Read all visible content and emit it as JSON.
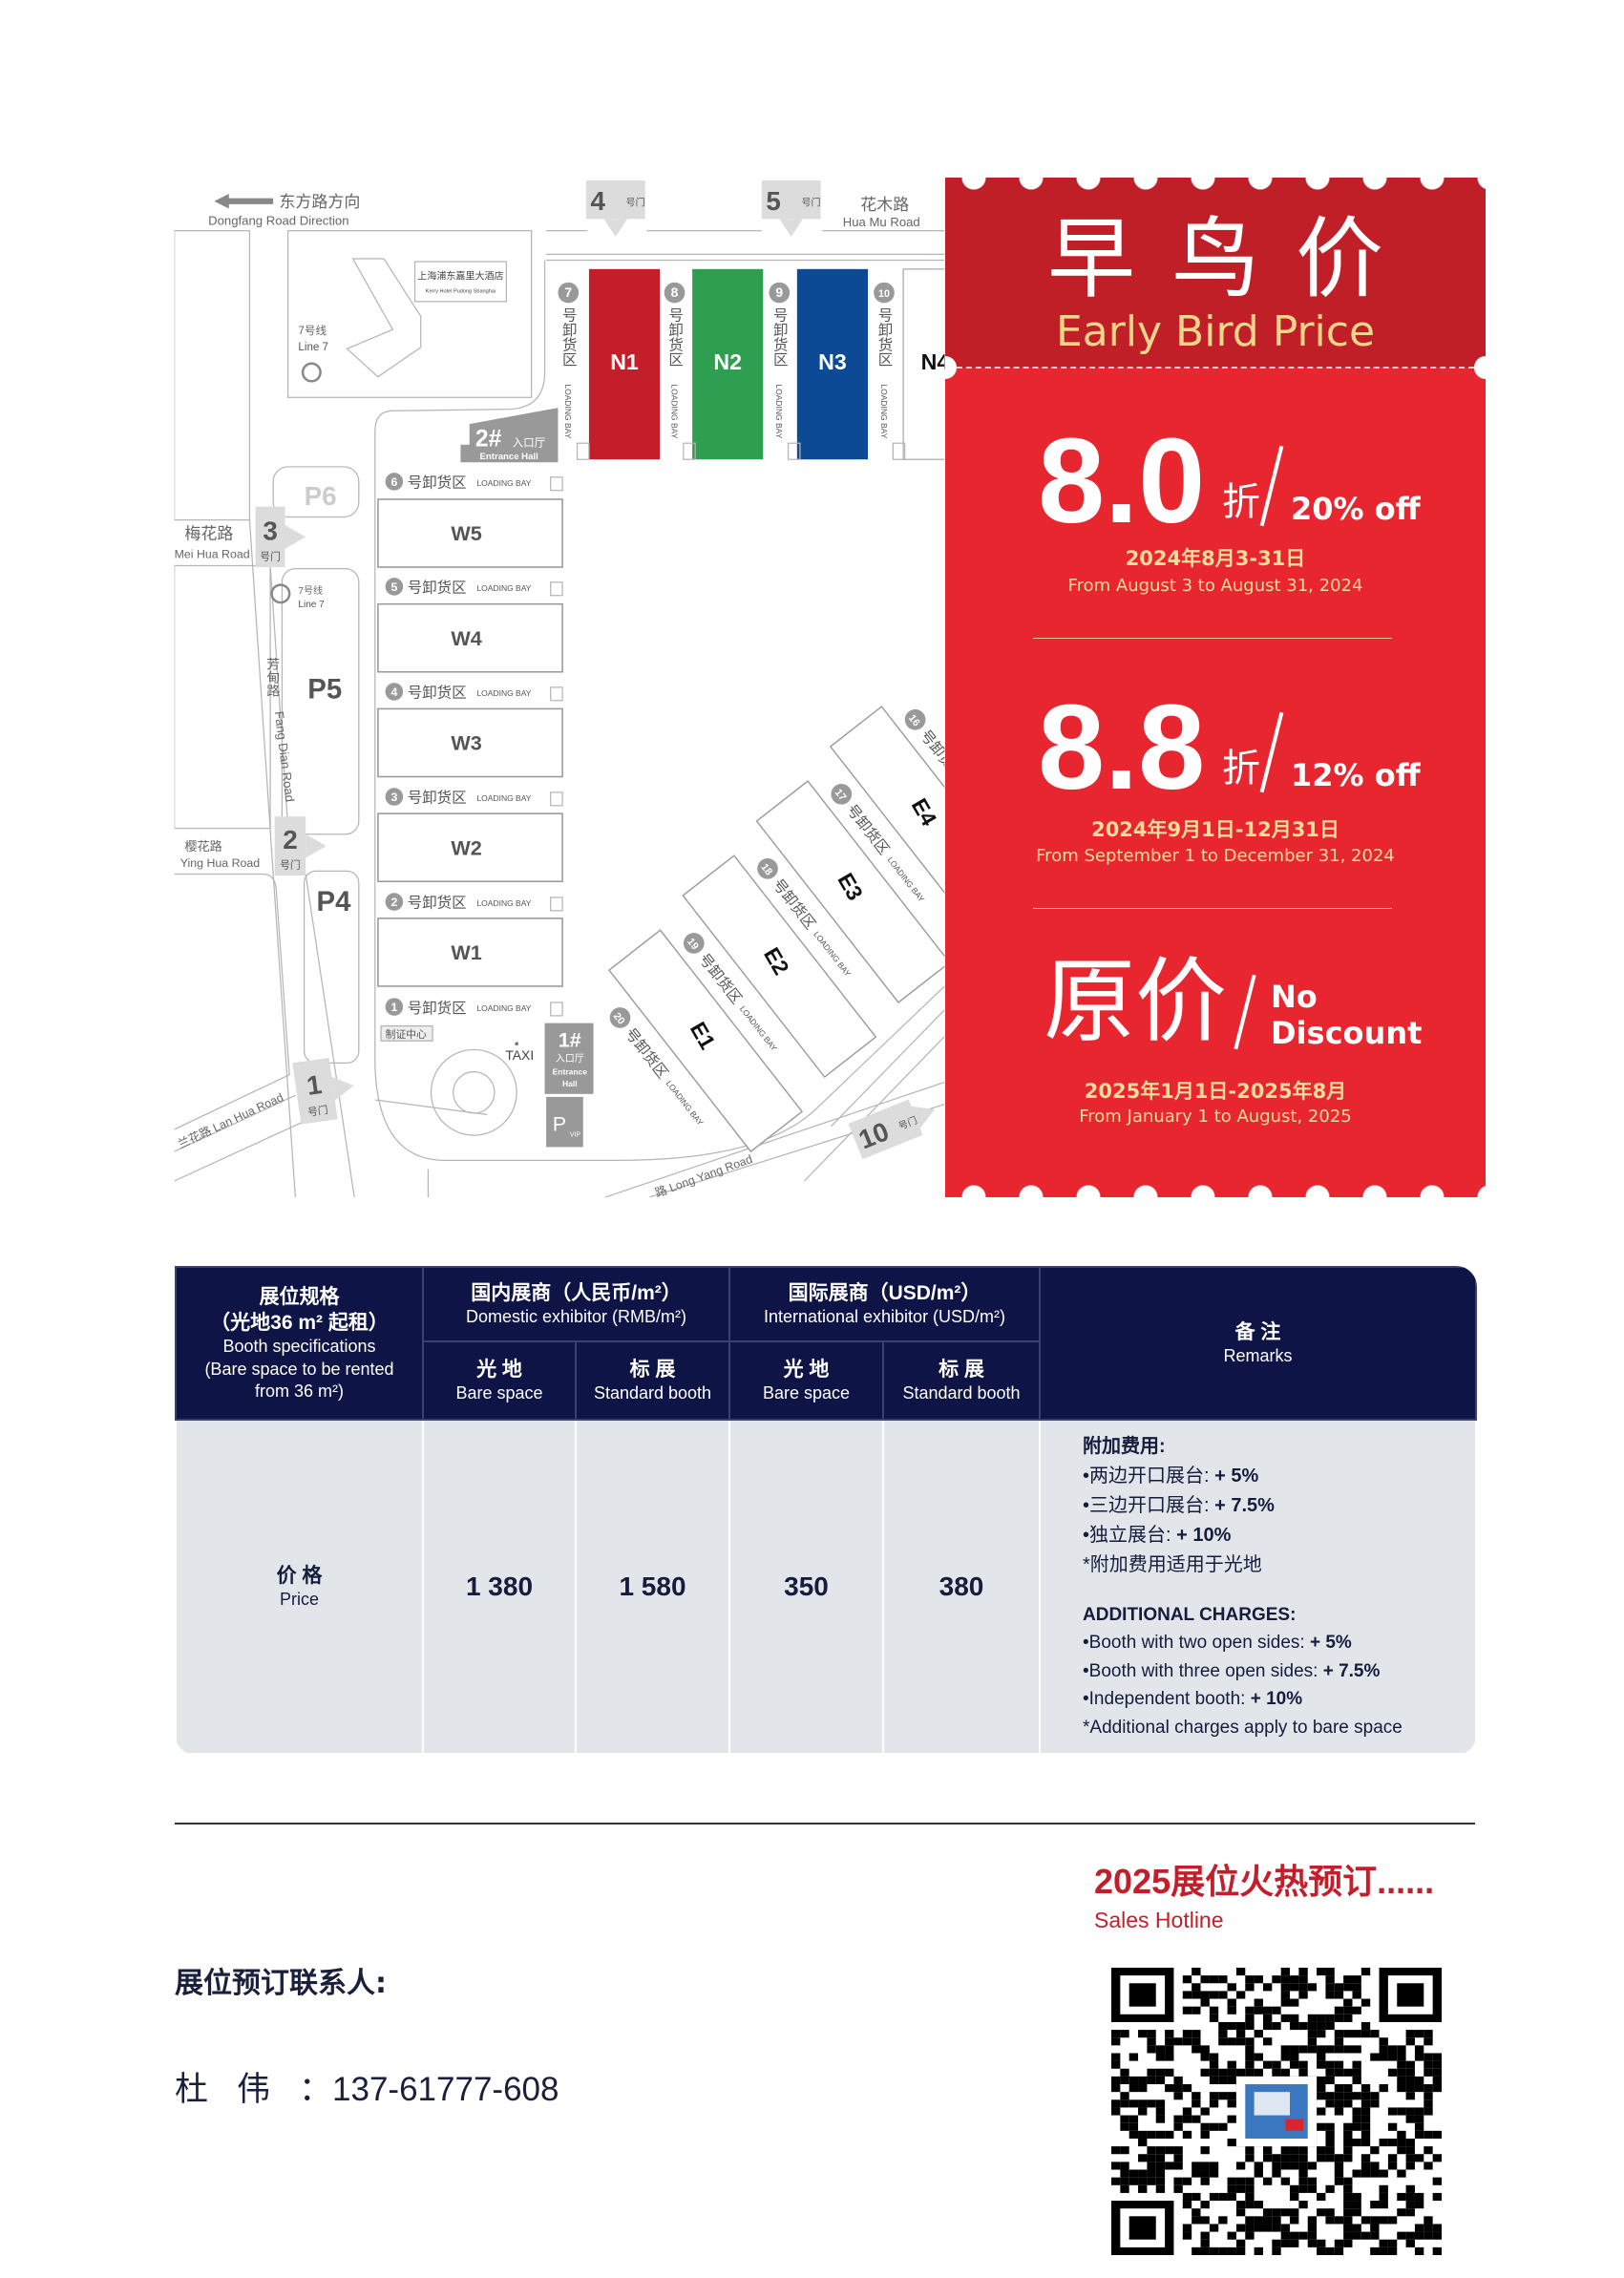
{
  "map": {
    "direction": {
      "cn": "东方路方向",
      "en": "Dongfang Road Direction"
    },
    "gate_suffix": "号门",
    "gates": {
      "g1": "1",
      "g2": "2",
      "g3": "3",
      "g4": "4",
      "g5": "5",
      "g10": "10"
    },
    "roads": {
      "huamu_cn": "花木路",
      "huamu_en": "Hua Mu Road",
      "meihua_cn": "梅花路",
      "meihua_en": "Mei Hua Road",
      "yinghua_cn": "樱花路",
      "yinghua_en": "Ying Hua Road",
      "fangdian_cn": "芳甸路",
      "fangdian_en": "Fang Dian Road",
      "lanhua": "兰花路 Lan Hua Road",
      "longyang": "路  Long Yang Road"
    },
    "hotel": {
      "cn": "上海浦东嘉里大酒店",
      "en": "Kerry Hotel Pudong Shanghai"
    },
    "metro": {
      "cn": "7号线",
      "en": "Line 7"
    },
    "parking": {
      "p6": "P6",
      "p5": "P5",
      "p4": "P4",
      "vip": "P",
      "vip_sub": "VIP"
    },
    "halls_north": [
      {
        "name": "N1",
        "color": "#c41e2a"
      },
      {
        "name": "N2",
        "color": "#2e9e50"
      },
      {
        "name": "N3",
        "color": "#0d4a95"
      },
      {
        "name": "N4",
        "color": "#ffffff"
      }
    ],
    "halls_west": [
      "W5",
      "W4",
      "W3",
      "W2",
      "W1"
    ],
    "halls_east": [
      "E1",
      "E2",
      "E3",
      "E4"
    ],
    "bays_north": [
      "7",
      "8",
      "9",
      "10"
    ],
    "bays_west": [
      "6",
      "5",
      "4",
      "3",
      "2",
      "1"
    ],
    "bays_east": [
      "20",
      "19",
      "18",
      "17",
      "16"
    ],
    "loading_bay_cn": "号卸货区",
    "loading_bay_en": "LOADING BAY",
    "entrance_2": {
      "num": "2#",
      "cn": "入口厅",
      "en": "Entrance Hall"
    },
    "entrance_1": {
      "num": "1#",
      "cn": "入口厅",
      "en1": "Entrance",
      "en2": "Hall"
    },
    "cert_center": "制证中心",
    "taxi": "TAXI"
  },
  "promo": {
    "title_cn": "早鸟价",
    "title_en": "Early Bird Price",
    "colors": {
      "header": "#c11f27",
      "body": "#e8262f",
      "date_text": "#f7dc9c"
    },
    "tiers": [
      {
        "discount": "8.0",
        "unit": "折",
        "off": "20% off",
        "date_cn": "2024年8月3-31日",
        "date_en": "From August 3 to August 31, 2024"
      },
      {
        "discount": "8.8",
        "unit": "折",
        "off": "12% off",
        "date_cn": "2024年9月1日-12月31日",
        "date_en": "From September 1 to December 31, 2024"
      },
      {
        "discount": "原价",
        "off_line1": "No",
        "off_line2": "Discount",
        "date_cn": "2025年1月1日-2025年8月",
        "date_en": "From January 1 to August, 2025"
      }
    ]
  },
  "table": {
    "spec_header": {
      "cn1": "展位规格",
      "cn2": "（光地36 m² 起租）",
      "en1": "Booth specifications",
      "en2": "(Bare space to be rented",
      "en3": "from 36 m²)"
    },
    "domestic": {
      "cn": "国内展商（人民币/m²）",
      "en": "Domestic exhibitor (RMB/m²)"
    },
    "international": {
      "cn": "国际展商（USD/m²）",
      "en": "International exhibitor (USD/m²)"
    },
    "sub": [
      {
        "cn": "光  地",
        "en": "Bare space"
      },
      {
        "cn": "标  展",
        "en": "Standard booth"
      },
      {
        "cn": "光  地",
        "en": "Bare space"
      },
      {
        "cn": "标  展",
        "en": "Standard booth"
      }
    ],
    "remarks_header": {
      "cn": "备  注",
      "en": "Remarks"
    },
    "row_label": {
      "cn": "价  格",
      "en": "Price"
    },
    "prices": [
      "1 380",
      "1 580",
      "350",
      "380"
    ],
    "remarks": {
      "cn_title": "附加费用:",
      "cn_items": [
        {
          "text": "•两边开口展台: ",
          "value": "+ 5%"
        },
        {
          "text": "•三边开口展台: ",
          "value": "+ 7.5%"
        },
        {
          "text": "•独立展台: ",
          "value": "+ 10%"
        }
      ],
      "cn_note": "*附加费用适用于光地",
      "en_title": "ADDITIONAL CHARGES:",
      "en_items": [
        {
          "text": "•Booth with two open sides: ",
          "value": "+ 5%"
        },
        {
          "text": "•Booth with three open sides: ",
          "value": "+ 7.5%"
        },
        {
          "text": "•Independent booth: ",
          "value": "+ 10%"
        }
      ],
      "en_note": "*Additional charges apply to bare space"
    }
  },
  "footer": {
    "hotline_cn": "2025展位火热预订......",
    "hotline_en": "Sales Hotline",
    "contact_label": "展位预订联系人:",
    "contact_name": "杜伟",
    "contact_sep": "：",
    "contact_phone": "137-61777-608"
  }
}
